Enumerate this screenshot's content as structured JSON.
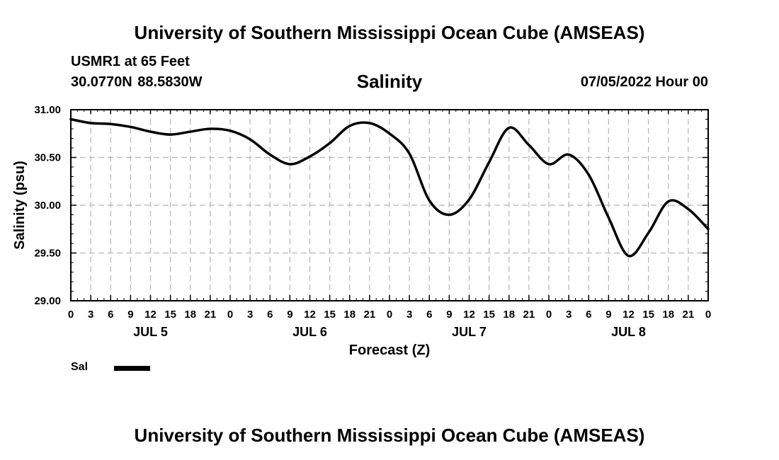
{
  "header": {
    "title": "University of Southern Mississippi Ocean Cube (AMSEAS)",
    "station": "USMR1 at 65 Feet",
    "location": "30.0770N  88.5830W",
    "datetime": "07/05/2022 Hour 00"
  },
  "footer": {
    "title": "University of Southern Mississippi Ocean Cube (AMSEAS)"
  },
  "legend": {
    "label": "Sal"
  },
  "chart_data": {
    "type": "line",
    "title": "Salinity",
    "xlabel": "Forecast (Z)",
    "ylabel": "Salinity (psu)",
    "ylim": [
      29.0,
      31.0
    ],
    "yticks": [
      "29.00",
      "29.50",
      "30.00",
      "30.50",
      "31.00"
    ],
    "xlim": [
      0,
      96
    ],
    "x_tick_labels": [
      "0",
      "3",
      "6",
      "9",
      "12",
      "15",
      "18",
      "21",
      "0",
      "3",
      "6",
      "9",
      "12",
      "15",
      "18",
      "21",
      "0",
      "3",
      "6",
      "9",
      "12",
      "15",
      "18",
      "21",
      "0",
      "3",
      "6",
      "9",
      "12",
      "15",
      "18",
      "21",
      "0"
    ],
    "day_labels": [
      "JUL 5",
      "JUL 6",
      "JUL 7",
      "JUL 8"
    ],
    "grid": true,
    "series": [
      {
        "name": "Sal",
        "x": [
          0,
          3,
          6,
          9,
          12,
          15,
          18,
          21,
          24,
          27,
          30,
          33,
          36,
          39,
          42,
          45,
          48,
          51,
          54,
          57,
          60,
          63,
          66,
          69,
          72,
          75,
          78,
          81,
          84,
          87,
          90,
          93,
          96
        ],
        "values": [
          30.9,
          30.86,
          30.85,
          30.82,
          30.77,
          30.74,
          30.77,
          30.8,
          30.78,
          30.69,
          30.53,
          30.43,
          30.51,
          30.65,
          30.83,
          30.86,
          30.75,
          30.54,
          30.05,
          29.9,
          30.06,
          30.45,
          30.81,
          30.63,
          30.43,
          30.53,
          30.32,
          29.87,
          29.47,
          29.71,
          30.04,
          29.96,
          29.75
        ]
      }
    ]
  }
}
